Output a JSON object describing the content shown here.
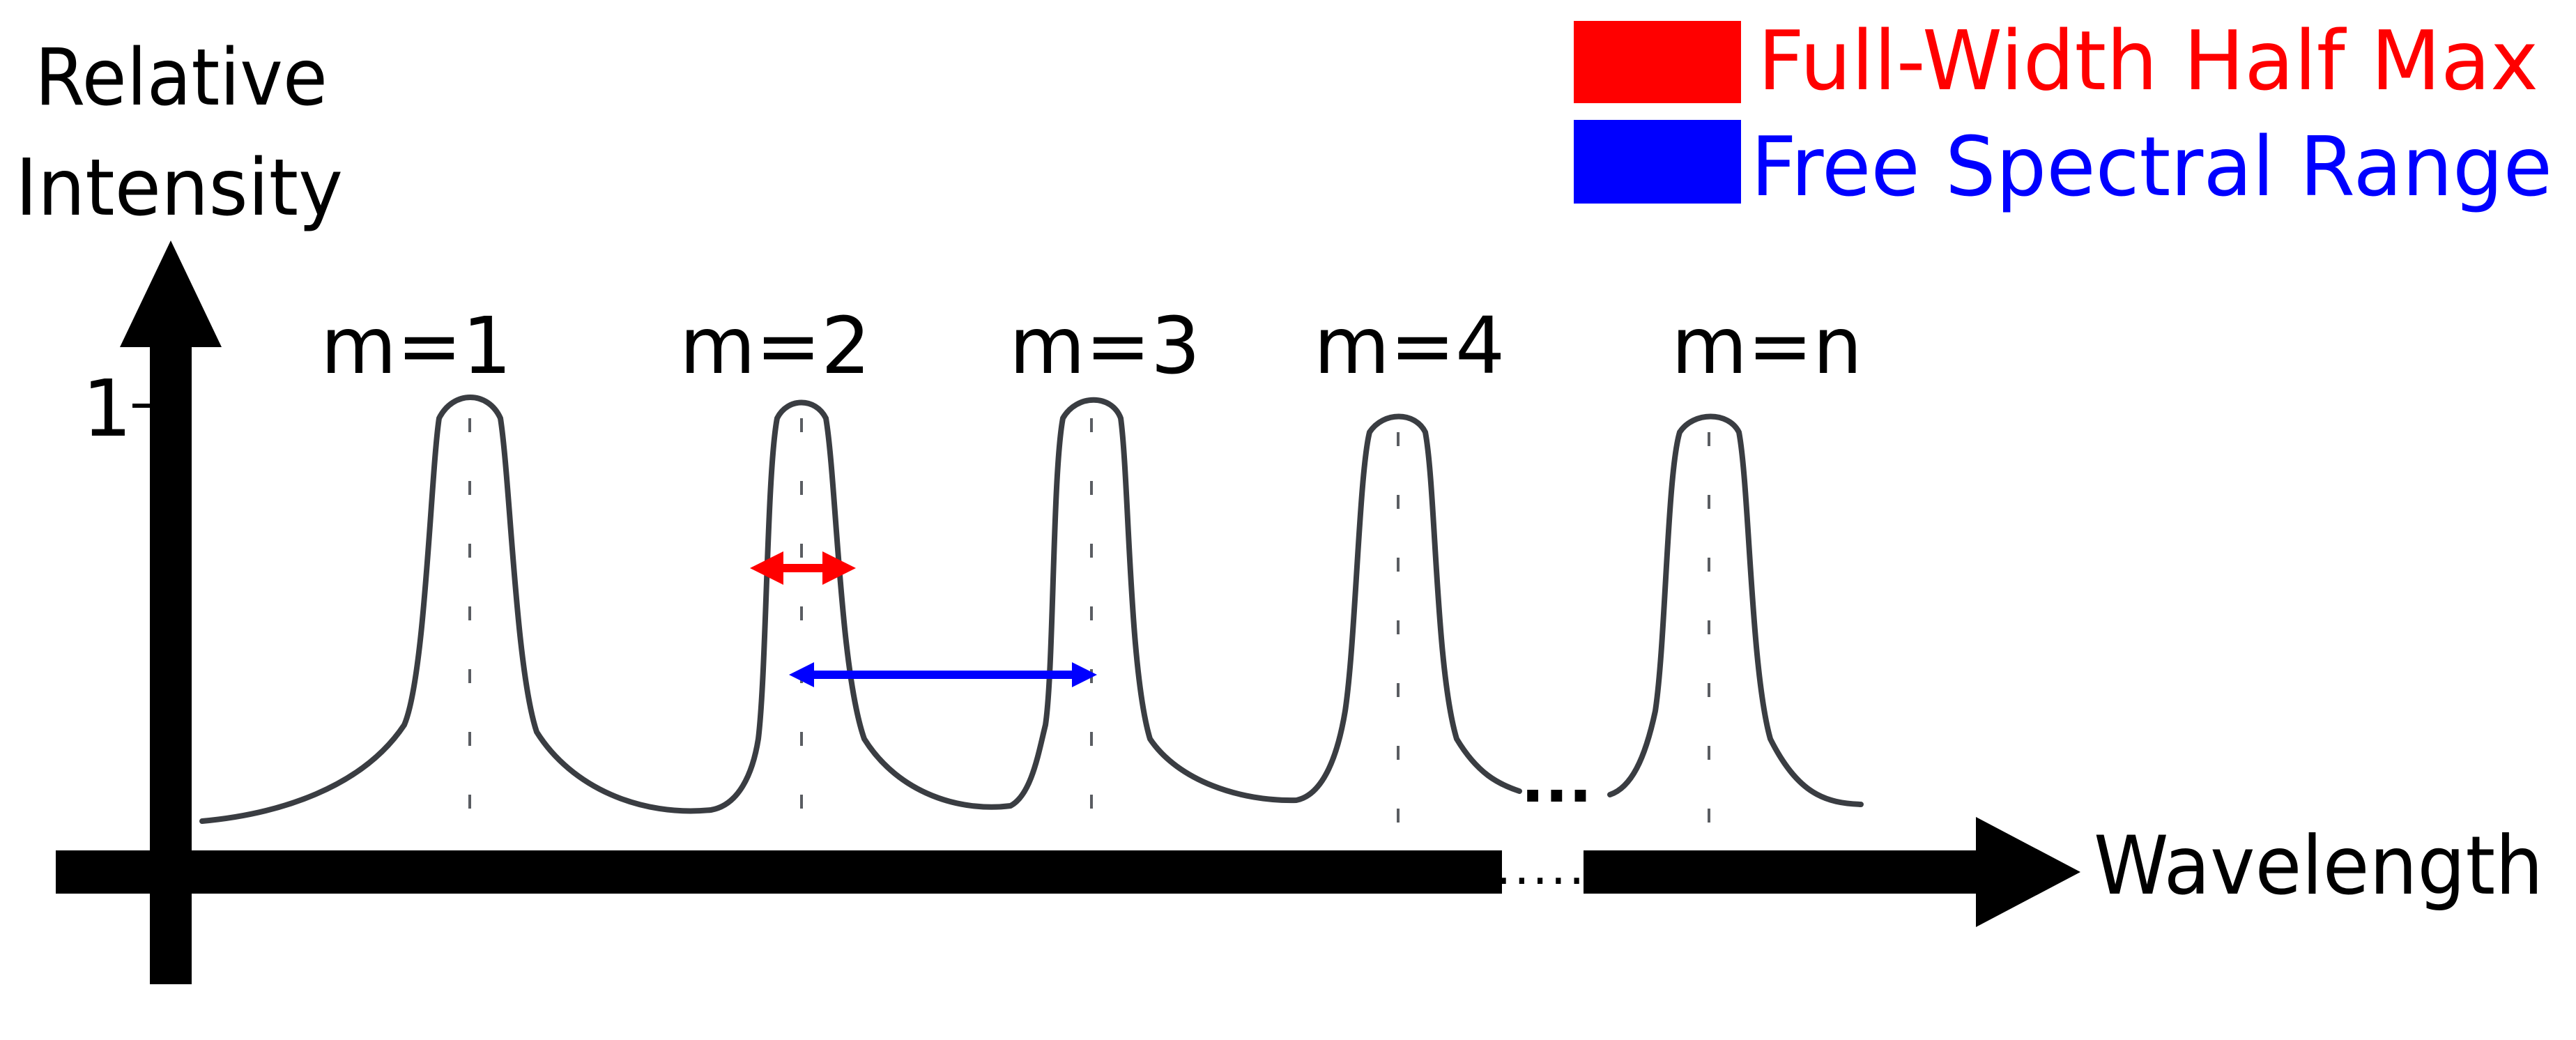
{
  "axes": {
    "y_label_line1": "Relative",
    "y_label_line2": "Intensity",
    "x_label": "Wavelength",
    "y_tick": "1",
    "x_axis_gap": "....."
  },
  "legend": {
    "fwhm": {
      "label": "Full-Width Half Max",
      "color": "#ff0000"
    },
    "fsr": {
      "label": "Free Spectral Range",
      "color": "#0000ff"
    }
  },
  "peaks": [
    {
      "label": "m=1"
    },
    {
      "label": "m=2"
    },
    {
      "label": "m=3"
    },
    {
      "label": "m=4"
    },
    {
      "label": "m=n"
    }
  ],
  "ellipsis": "...",
  "colors": {
    "axis": "#000000",
    "curve": "#3a3d42",
    "fwhm_arrow": "#ff0000",
    "fsr_arrow": "#0000ff"
  }
}
